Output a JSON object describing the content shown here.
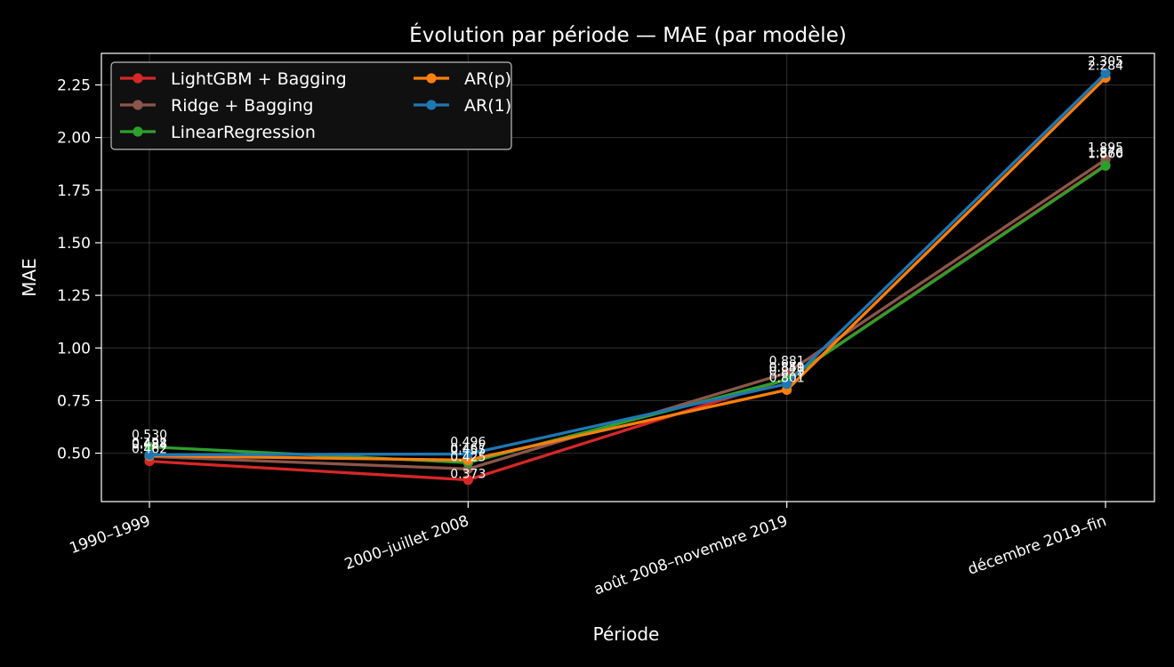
{
  "chart_data": {
    "type": "line",
    "title": "Évolution par période — MAE (par modèle)",
    "xlabel": "Période",
    "ylabel": "MAE",
    "categories": [
      "1990–1999",
      "2000–juillet 2008",
      "août 2008–novembre 2019",
      "décembre 2019–fin"
    ],
    "ylim": [
      0.27,
      2.4
    ],
    "yticks": [
      0.5,
      0.75,
      1.0,
      1.25,
      1.5,
      1.75,
      2.0,
      2.25
    ],
    "ytick_labels": [
      "0.50",
      "0.75",
      "1.00",
      "1.25",
      "1.50",
      "1.75",
      "2.00",
      "2.25"
    ],
    "grid": true,
    "legend_position": "top-left",
    "series": [
      {
        "name": "LightGBM + Bagging",
        "color": "#d62728",
        "values": [
          0.462,
          0.373,
          0.851,
          1.87
        ],
        "labels": [
          "0.462",
          "0.373",
          "0.851",
          "1.870"
        ]
      },
      {
        "name": "Ridge + Bagging",
        "color": "#8c564b",
        "values": [
          0.484,
          0.425,
          0.881,
          1.895
        ],
        "labels": [
          "0.484",
          "0.425",
          "0.881",
          "1.895"
        ]
      },
      {
        "name": "LinearRegression",
        "color": "#2ca02c",
        "values": [
          0.53,
          0.455,
          0.849,
          1.866
        ],
        "labels": [
          "0.530",
          "0.455",
          "0.849",
          "1.866"
        ]
      },
      {
        "name": "AR(p)",
        "color": "#ff7f0e",
        "values": [
          0.488,
          0.467,
          0.801,
          2.284
        ],
        "labels": [
          "0.488",
          "0.467",
          "0.801",
          "2.284"
        ]
      },
      {
        "name": "AR(1)",
        "color": "#1f77b4",
        "values": [
          0.492,
          0.496,
          0.829,
          2.305
        ],
        "labels": [
          "0.492",
          "0.496",
          "0.829",
          "2.305"
        ]
      }
    ]
  }
}
